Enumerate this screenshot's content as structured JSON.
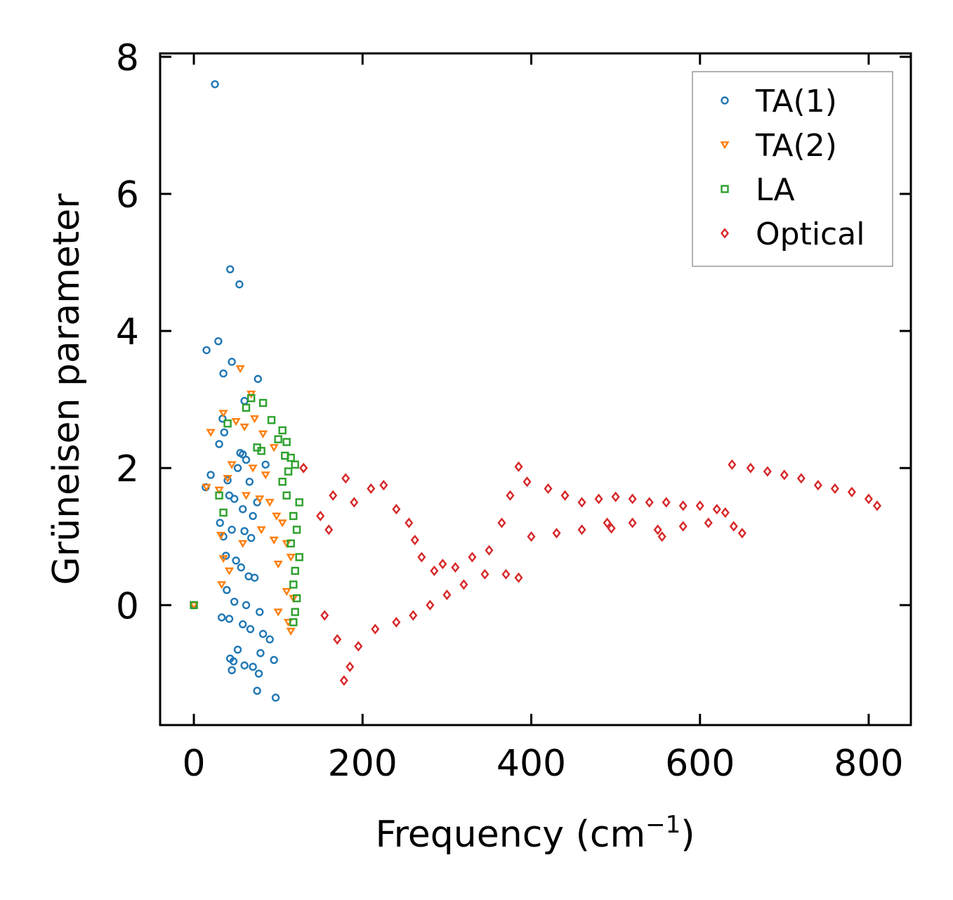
{
  "chart_data": {
    "type": "scatter",
    "xlabel": "Frequency (cm",
    "xlabel_sup": "−1",
    "xlabel_tail": ")",
    "ylabel": "Grüneisen parameter",
    "xlim": [
      -40,
      850
    ],
    "ylim": [
      -1.75,
      8.05
    ],
    "xticks": [
      0,
      200,
      400,
      600,
      800
    ],
    "yticks": [
      0,
      2,
      4,
      6,
      8
    ],
    "legend_position": "top-right",
    "series": [
      {
        "name": "TA(1)",
        "color": "#1f77b4",
        "marker": "circle",
        "points": [
          [
            0,
            0
          ],
          [
            25,
            7.6
          ],
          [
            43,
            4.9
          ],
          [
            54,
            4.68
          ],
          [
            15,
            3.72
          ],
          [
            29,
            3.85
          ],
          [
            35,
            3.38
          ],
          [
            45,
            3.55
          ],
          [
            76,
            3.3
          ],
          [
            60,
            2.98
          ],
          [
            34,
            2.72
          ],
          [
            36,
            2.52
          ],
          [
            30,
            2.35
          ],
          [
            55,
            2.22
          ],
          [
            58,
            2.2
          ],
          [
            62,
            2.12
          ],
          [
            52,
            2.0
          ],
          [
            85,
            2.05
          ],
          [
            20,
            1.9
          ],
          [
            40,
            1.82
          ],
          [
            66,
            1.8
          ],
          [
            14,
            1.72
          ],
          [
            48,
            1.55
          ],
          [
            42,
            1.6
          ],
          [
            75,
            1.5
          ],
          [
            58,
            1.4
          ],
          [
            70,
            1.3
          ],
          [
            31,
            1.2
          ],
          [
            45,
            1.1
          ],
          [
            60,
            1.08
          ],
          [
            35,
            1.0
          ],
          [
            68,
            0.98
          ],
          [
            38,
            0.72
          ],
          [
            50,
            0.65
          ],
          [
            56,
            0.55
          ],
          [
            65,
            0.42
          ],
          [
            72,
            0.4
          ],
          [
            39,
            0.22
          ],
          [
            48,
            0.05
          ],
          [
            62,
            0.0
          ],
          [
            78,
            -0.1
          ],
          [
            33,
            -0.18
          ],
          [
            42,
            -0.2
          ],
          [
            58,
            -0.28
          ],
          [
            67,
            -0.35
          ],
          [
            82,
            -0.42
          ],
          [
            90,
            -0.5
          ],
          [
            52,
            -0.65
          ],
          [
            79,
            -0.7
          ],
          [
            43,
            -0.78
          ],
          [
            47,
            -0.82
          ],
          [
            60,
            -0.88
          ],
          [
            70,
            -0.9
          ],
          [
            45,
            -0.95
          ],
          [
            77,
            -1.0
          ],
          [
            95,
            -0.8
          ],
          [
            75,
            -1.25
          ],
          [
            97,
            -1.35
          ]
        ]
      },
      {
        "name": "TA(2)",
        "color": "#ff7f0e",
        "marker": "triangle-down",
        "points": [
          [
            0,
            0
          ],
          [
            55,
            3.45
          ],
          [
            68,
            3.08
          ],
          [
            20,
            2.52
          ],
          [
            35,
            2.8
          ],
          [
            50,
            2.68
          ],
          [
            60,
            2.6
          ],
          [
            72,
            2.72
          ],
          [
            82,
            2.5
          ],
          [
            95,
            2.3
          ],
          [
            45,
            2.05
          ],
          [
            70,
            2.0
          ],
          [
            85,
            1.9
          ],
          [
            15,
            1.72
          ],
          [
            30,
            1.68
          ],
          [
            40,
            1.85
          ],
          [
            62,
            1.6
          ],
          [
            78,
            1.55
          ],
          [
            90,
            1.5
          ],
          [
            98,
            1.3
          ],
          [
            105,
            1.2
          ],
          [
            80,
            1.1
          ],
          [
            95,
            0.95
          ],
          [
            110,
            0.9
          ],
          [
            32,
            1.02
          ],
          [
            58,
            0.9
          ],
          [
            35,
            0.68
          ],
          [
            42,
            0.5
          ],
          [
            100,
            0.6
          ],
          [
            115,
            0.7
          ],
          [
            33,
            0.3
          ],
          [
            110,
            0.2
          ],
          [
            118,
            0.1
          ],
          [
            100,
            -0.1
          ],
          [
            112,
            -0.25
          ],
          [
            115,
            -0.38
          ]
        ]
      },
      {
        "name": "LA",
        "color": "#2ca02c",
        "marker": "square",
        "points": [
          [
            0,
            0
          ],
          [
            40,
            2.65
          ],
          [
            62,
            2.88
          ],
          [
            68,
            3.02
          ],
          [
            82,
            2.95
          ],
          [
            92,
            2.7
          ],
          [
            105,
            2.55
          ],
          [
            100,
            2.42
          ],
          [
            110,
            2.38
          ],
          [
            75,
            2.3
          ],
          [
            80,
            2.25
          ],
          [
            108,
            2.18
          ],
          [
            115,
            2.15
          ],
          [
            120,
            2.05
          ],
          [
            112,
            1.95
          ],
          [
            30,
            1.6
          ],
          [
            35,
            1.35
          ],
          [
            105,
            1.8
          ],
          [
            110,
            1.6
          ],
          [
            125,
            1.5
          ],
          [
            118,
            1.3
          ],
          [
            122,
            1.1
          ],
          [
            115,
            0.9
          ],
          [
            125,
            0.7
          ],
          [
            120,
            0.5
          ],
          [
            118,
            0.3
          ],
          [
            122,
            0.1
          ],
          [
            120,
            -0.1
          ],
          [
            118,
            -0.25
          ]
        ]
      },
      {
        "name": "Optical",
        "color": "#d62728",
        "marker": "diamond",
        "points": [
          [
            130,
            2.0
          ],
          [
            150,
            1.3
          ],
          [
            160,
            1.1
          ],
          [
            165,
            1.6
          ],
          [
            180,
            1.85
          ],
          [
            190,
            1.5
          ],
          [
            210,
            1.7
          ],
          [
            225,
            1.75
          ],
          [
            240,
            1.4
          ],
          [
            255,
            1.2
          ],
          [
            262,
            0.95
          ],
          [
            270,
            0.7
          ],
          [
            285,
            0.5
          ],
          [
            295,
            0.6
          ],
          [
            310,
            0.55
          ],
          [
            330,
            0.7
          ],
          [
            350,
            0.8
          ],
          [
            365,
            1.2
          ],
          [
            375,
            1.6
          ],
          [
            385,
            2.02
          ],
          [
            395,
            1.8
          ],
          [
            420,
            1.7
          ],
          [
            440,
            1.6
          ],
          [
            460,
            1.5
          ],
          [
            480,
            1.55
          ],
          [
            500,
            1.58
          ],
          [
            520,
            1.55
          ],
          [
            540,
            1.5
          ],
          [
            560,
            1.5
          ],
          [
            580,
            1.45
          ],
          [
            600,
            1.45
          ],
          [
            620,
            1.4
          ],
          [
            630,
            1.35
          ],
          [
            638,
            2.05
          ],
          [
            660,
            2.0
          ],
          [
            680,
            1.95
          ],
          [
            700,
            1.9
          ],
          [
            720,
            1.85
          ],
          [
            740,
            1.75
          ],
          [
            760,
            1.7
          ],
          [
            780,
            1.65
          ],
          [
            800,
            1.55
          ],
          [
            810,
            1.45
          ],
          [
            155,
            -0.15
          ],
          [
            170,
            -0.5
          ],
          [
            178,
            -1.1
          ],
          [
            185,
            -0.9
          ],
          [
            195,
            -0.6
          ],
          [
            215,
            -0.35
          ],
          [
            240,
            -0.25
          ],
          [
            260,
            -0.15
          ],
          [
            280,
            0.0
          ],
          [
            300,
            0.15
          ],
          [
            320,
            0.3
          ],
          [
            345,
            0.45
          ],
          [
            370,
            0.45
          ],
          [
            385,
            0.4
          ],
          [
            400,
            1.0
          ],
          [
            430,
            1.05
          ],
          [
            460,
            1.1
          ],
          [
            490,
            1.2
          ],
          [
            520,
            1.2
          ],
          [
            550,
            1.1
          ],
          [
            580,
            1.15
          ],
          [
            610,
            1.2
          ],
          [
            640,
            1.15
          ],
          [
            650,
            1.05
          ],
          [
            555,
            1.0
          ],
          [
            495,
            1.12
          ]
        ]
      }
    ]
  }
}
